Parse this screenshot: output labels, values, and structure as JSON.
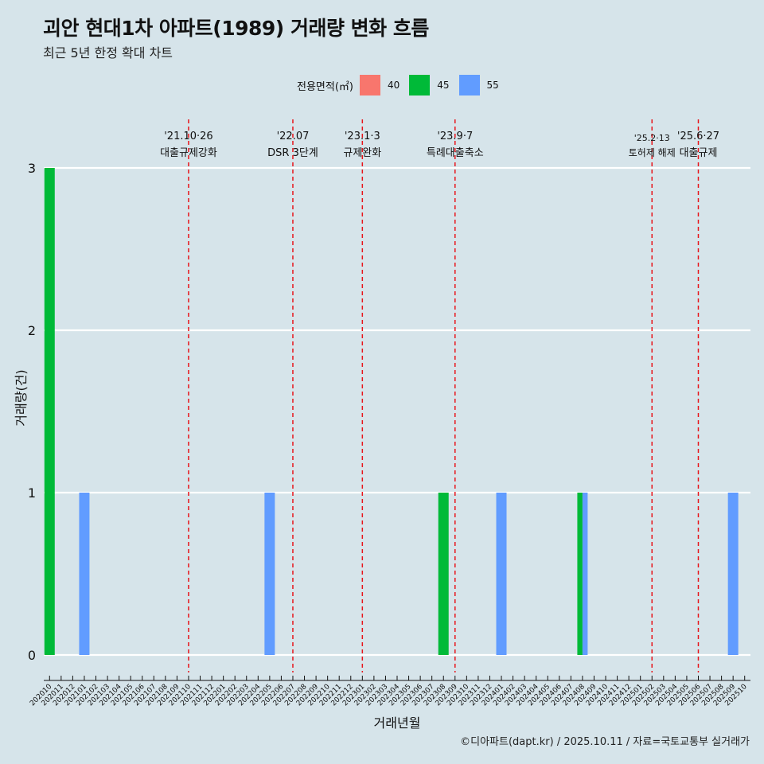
{
  "title": "괴안 현대1차 아파트(1989) 거래량 변화 흐름",
  "subtitle": "최근 5년 한정 확대 차트",
  "caption": "©디아파트(dapt.kr) / 2025.10.11 / 자료=국토교통부 실거래가",
  "colors": {
    "40": "#f8766d",
    "45": "#00ba38",
    "55": "#619cff",
    "grid": "#ffffff",
    "event": "#e8141a",
    "background": "#d6e4ea"
  },
  "legend": {
    "title": "전용면적(㎡)",
    "items": [
      {
        "label": "40",
        "color": "#f8766d"
      },
      {
        "label": "45",
        "color": "#00ba38"
      },
      {
        "label": "55",
        "color": "#619cff"
      }
    ]
  },
  "chart_data": {
    "type": "bar",
    "title": "괴안 현대1차 아파트(1989) 거래량 변화 흐름",
    "xlabel": "거래년월",
    "ylabel": "거래량(건)",
    "ylim": [
      0,
      3
    ],
    "yticks": [
      0,
      1,
      2,
      3
    ],
    "categories": [
      "202010",
      "202011",
      "202012",
      "202101",
      "202102",
      "202103",
      "202104",
      "202105",
      "202106",
      "202107",
      "202108",
      "202109",
      "202110",
      "202111",
      "202112",
      "202201",
      "202202",
      "202203",
      "202204",
      "202205",
      "202206",
      "202207",
      "202208",
      "202209",
      "202210",
      "202211",
      "202212",
      "202301",
      "202302",
      "202303",
      "202304",
      "202305",
      "202306",
      "202307",
      "202308",
      "202309",
      "202310",
      "202311",
      "202312",
      "202401",
      "202402",
      "202403",
      "202404",
      "202405",
      "202406",
      "202407",
      "202408",
      "202409",
      "202410",
      "202411",
      "202412",
      "202501",
      "202502",
      "202503",
      "202504",
      "202505",
      "202506",
      "202507",
      "202508",
      "202509",
      "202510"
    ],
    "bars": [
      {
        "month": "202010",
        "area": "45",
        "count": 3
      },
      {
        "month": "202101",
        "area": "55",
        "count": 1
      },
      {
        "month": "202205",
        "area": "55",
        "count": 1
      },
      {
        "month": "202308",
        "area": "45",
        "count": 1
      },
      {
        "month": "202401",
        "area": "55",
        "count": 1
      },
      {
        "month": "202408",
        "area": "45",
        "count": 1
      },
      {
        "month": "202408",
        "area": "55",
        "count": 1
      },
      {
        "month": "202509",
        "area": "55",
        "count": 1
      }
    ],
    "events": [
      {
        "date": "'21.10·26",
        "label": "대출규제강화",
        "position": 12.5
      },
      {
        "date": "'22.07",
        "label": "DSR 3단계",
        "position": 21.5
      },
      {
        "date": "'23.1·3",
        "label": "규제완화",
        "position": 27.5
      },
      {
        "date": "'23.9·7",
        "label": "특례대출축소",
        "position": 35.5
      },
      {
        "date": "'25.2·13",
        "label": "토허제 해제",
        "position": 52.5
      },
      {
        "date": "'25.6·27",
        "label": "대출규제",
        "position": 56.5
      }
    ]
  }
}
